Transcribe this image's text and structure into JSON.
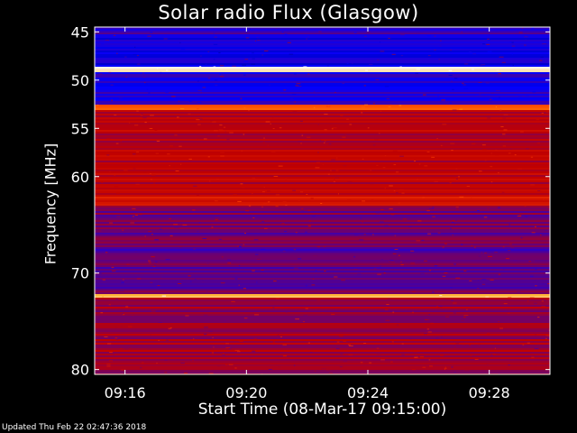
{
  "chart_data": {
    "type": "heatmap",
    "title": "Solar radio Flux (Glasgow)",
    "xlabel": "Start Time (08-Mar-17 09:15:00)",
    "ylabel": "Frequency [MHz]",
    "x_ticks": [
      "09:16",
      "09:20",
      "09:24",
      "09:28"
    ],
    "x_tick_minutes": [
      1,
      5,
      9,
      13
    ],
    "xlim_minutes": [
      0,
      15
    ],
    "y_ticks": [
      45,
      50,
      55,
      60,
      70,
      80
    ],
    "ylim": [
      44.5,
      80.5
    ],
    "colormap": [
      "#000000",
      "#0000ff",
      "#c00000",
      "#ff4000",
      "#ffa000",
      "#ffffff"
    ],
    "frequency_bands": [
      {
        "range": [
          44.5,
          45.2
        ],
        "level": 1.2
      },
      {
        "range": [
          45.2,
          48.5
        ],
        "level": 1.0
      },
      {
        "range": [
          48.5,
          49.0
        ],
        "level": 4.8
      },
      {
        "range": [
          49.0,
          52.5
        ],
        "level": 1.1
      },
      {
        "range": [
          52.5,
          53.0
        ],
        "level": 3.2
      },
      {
        "range": [
          53.0,
          62.0
        ],
        "level": 2.0
      },
      {
        "range": [
          62.0,
          63.0
        ],
        "level": 2.3
      },
      {
        "range": [
          63.0,
          66.5
        ],
        "level": 1.6
      },
      {
        "range": [
          66.5,
          72.0
        ],
        "level": 1.5
      },
      {
        "range": [
          72.0,
          72.5
        ],
        "level": 4.2
      },
      {
        "range": [
          72.5,
          80.5
        ],
        "level": 1.8
      }
    ]
  },
  "footer": "Updated Thu Feb 22 02:47:36 2018"
}
